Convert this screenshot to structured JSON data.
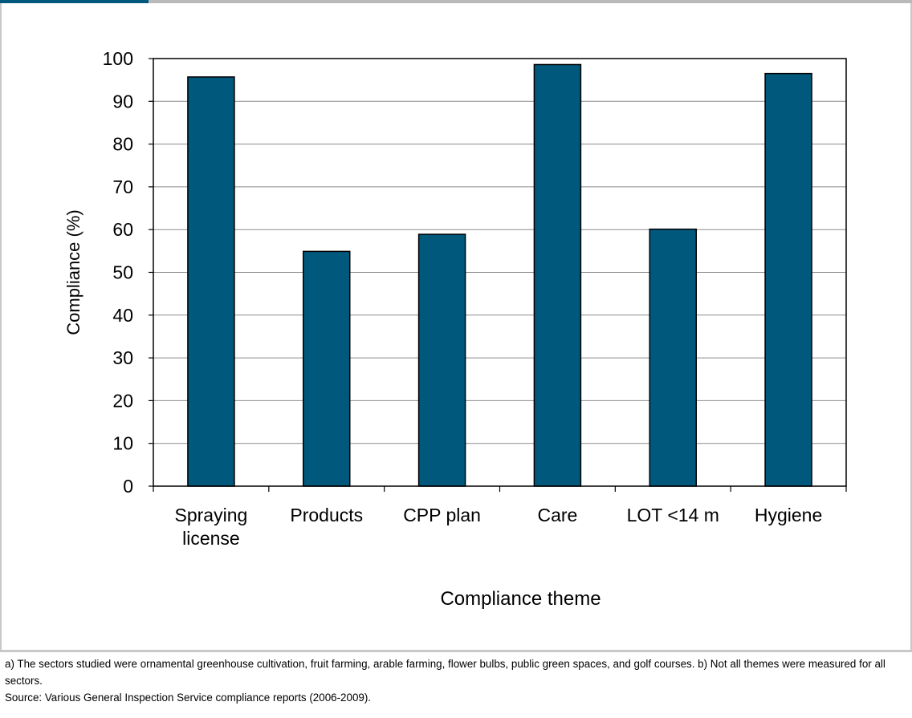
{
  "colors": {
    "bar": "#00587c",
    "frame": "#c8c8c8",
    "header_accent": "#00587c",
    "header_strip": "#b9b9b9",
    "grid": "#8c8c8c"
  },
  "chart_data": {
    "type": "bar",
    "categories": [
      [
        "Spraying",
        "license"
      ],
      [
        "Products"
      ],
      [
        "CPP plan"
      ],
      [
        "Care"
      ],
      [
        "LOT <14 m"
      ],
      [
        "Hygiene"
      ]
    ],
    "values": [
      95.7,
      54.9,
      58.9,
      98.6,
      60.1,
      96.5
    ],
    "xlabel": "Compliance theme",
    "ylabel": "Compliance (%)",
    "ylim": [
      0,
      100
    ],
    "yticks": [
      0,
      10,
      20,
      30,
      40,
      50,
      60,
      70,
      80,
      90,
      100
    ],
    "grid": true,
    "legend": "none"
  },
  "notes": {
    "note_a": "a) The sectors studied were ornamental greenhouse cultivation, fruit farming, arable farming, flower bulbs, public green spaces, and golf courses. b) Not all themes were measured for all sectors.",
    "source": "Source: Various General Inspection Service compliance reports (2006-2009)."
  }
}
